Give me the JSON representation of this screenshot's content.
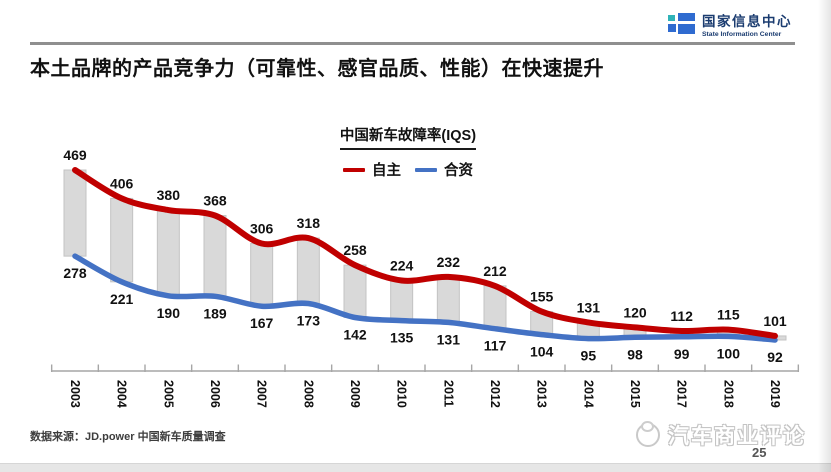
{
  "header": {
    "logo": {
      "cn": "国家信息中心",
      "en": "State Information Center"
    },
    "title": "本土品牌的产品竞争力（可靠性、感官品质、性能）在快速提升"
  },
  "chart_data": {
    "type": "line",
    "title": "中国新车故障率(IQS)",
    "categories": [
      "2003",
      "2004",
      "2005",
      "2006",
      "2007",
      "2008",
      "2009",
      "2010",
      "2011",
      "2012",
      "2013",
      "2014",
      "2015",
      "2017",
      "2018",
      "2019"
    ],
    "series": [
      {
        "name": "自主",
        "color": "#c00000",
        "values": [
          469,
          406,
          380,
          368,
          306,
          318,
          258,
          224,
          232,
          212,
          155,
          131,
          120,
          112,
          115,
          101
        ]
      },
      {
        "name": "合资",
        "color": "#4472c4",
        "values": [
          278,
          221,
          190,
          189,
          167,
          173,
          142,
          135,
          131,
          117,
          104,
          95,
          98,
          99,
          100,
          92
        ]
      }
    ],
    "bars_between_series": true,
    "bar_color": "#d9d9d9",
    "bar_border_color": "#c3c3c3",
    "axis_color": "#a6a6a6",
    "legend_position": "top",
    "grid": false,
    "y_axis_visible": false,
    "ylim": [
      92,
      469
    ],
    "data_labels": true
  },
  "footer": {
    "source": "数据来源：JD.power 中国新车质量调查"
  },
  "watermark": {
    "brand": "汽车商业评论",
    "page": "25"
  }
}
